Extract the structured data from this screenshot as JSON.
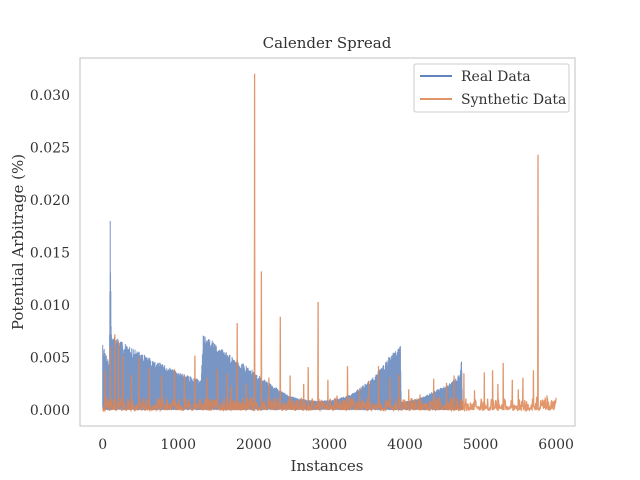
{
  "chart_data": {
    "type": "line",
    "title": "Calender Spread",
    "xlabel": "Instances",
    "ylabel": "Potential Arbitrage (%)",
    "xlim": [
      -300,
      6250
    ],
    "ylim": [
      -0.0015,
      0.0335
    ],
    "x_ticks": [
      0,
      1000,
      2000,
      3000,
      4000,
      5000,
      6000
    ],
    "x_tick_labels": [
      "0",
      "1000",
      "2000",
      "3000",
      "4000",
      "5000",
      "6000"
    ],
    "y_ticks": [
      0.0,
      0.005,
      0.01,
      0.015,
      0.02,
      0.025,
      0.03
    ],
    "y_tick_labels": [
      "0.000",
      "0.005",
      "0.010",
      "0.015",
      "0.020",
      "0.025",
      "0.030"
    ],
    "grid": false,
    "legend": {
      "position": "top-right"
    },
    "series": [
      {
        "name": "Real Data",
        "color": "#4c72b0",
        "envelope": [
          [
            0,
            0.0062
          ],
          [
            40,
            0.0055
          ],
          [
            90,
            0.0047
          ],
          [
            100,
            0.018
          ],
          [
            115,
            0.0072
          ],
          [
            200,
            0.0068
          ],
          [
            300,
            0.0063
          ],
          [
            400,
            0.0059
          ],
          [
            500,
            0.0055
          ],
          [
            600,
            0.0051
          ],
          [
            700,
            0.0047
          ],
          [
            800,
            0.0044
          ],
          [
            900,
            0.004
          ],
          [
            1000,
            0.0037
          ],
          [
            1100,
            0.0034
          ],
          [
            1200,
            0.0031
          ],
          [
            1300,
            0.0029
          ],
          [
            1330,
            0.0071
          ],
          [
            1450,
            0.0066
          ],
          [
            1550,
            0.006
          ],
          [
            1650,
            0.0055
          ],
          [
            1750,
            0.005
          ],
          [
            1850,
            0.0045
          ],
          [
            1950,
            0.004
          ],
          [
            2050,
            0.0034
          ],
          [
            2150,
            0.0029
          ],
          [
            2250,
            0.0024
          ],
          [
            2350,
            0.0019
          ],
          [
            2450,
            0.0015
          ],
          [
            2550,
            0.0012
          ],
          [
            2700,
            0.001
          ],
          [
            2850,
            0.0009
          ],
          [
            3000,
            0.001
          ],
          [
            3150,
            0.0012
          ],
          [
            3300,
            0.0016
          ],
          [
            3450,
            0.0024
          ],
          [
            3600,
            0.0033
          ],
          [
            3700,
            0.0043
          ],
          [
            3800,
            0.0052
          ],
          [
            3900,
            0.0058
          ],
          [
            3940,
            0.0061
          ],
          [
            3950,
            0.0008
          ],
          [
            4100,
            0.001
          ],
          [
            4250,
            0.0013
          ],
          [
            4350,
            0.0017
          ],
          [
            4450,
            0.0021
          ],
          [
            4550,
            0.0024
          ],
          [
            4650,
            0.003
          ],
          [
            4730,
            0.0035
          ],
          [
            4750,
            0.005
          ],
          [
            4760,
            0.0006
          ]
        ]
      },
      {
        "name": "Synthetic Data",
        "color": "#dd8452",
        "baseline": [
          0.0,
          0.0012
        ],
        "spikes": [
          [
            30,
            0.0038
          ],
          [
            100,
            0.006
          ],
          [
            160,
            0.0072
          ],
          [
            210,
            0.0066
          ],
          [
            270,
            0.0052
          ],
          [
            380,
            0.0034
          ],
          [
            480,
            0.005
          ],
          [
            620,
            0.004
          ],
          [
            780,
            0.0033
          ],
          [
            950,
            0.0039
          ],
          [
            1080,
            0.0034
          ],
          [
            1220,
            0.0052
          ],
          [
            1380,
            0.0031
          ],
          [
            1520,
            0.0039
          ],
          [
            1650,
            0.0035
          ],
          [
            1700,
            0.0023
          ],
          [
            1780,
            0.0083
          ],
          [
            1900,
            0.0025
          ],
          [
            2010,
            0.032
          ],
          [
            2100,
            0.0132
          ],
          [
            2200,
            0.0031
          ],
          [
            2350,
            0.0089
          ],
          [
            2480,
            0.0033
          ],
          [
            2660,
            0.0025
          ],
          [
            2720,
            0.0041
          ],
          [
            2850,
            0.0103
          ],
          [
            2980,
            0.0029
          ],
          [
            3100,
            0.0014
          ],
          [
            3240,
            0.0042
          ],
          [
            3400,
            0.0021
          ],
          [
            3520,
            0.0028
          ],
          [
            3650,
            0.0042
          ],
          [
            3800,
            0.0031
          ],
          [
            3920,
            0.0034
          ],
          [
            4050,
            0.002
          ],
          [
            4200,
            0.0015
          ],
          [
            4380,
            0.003
          ],
          [
            4550,
            0.0026
          ],
          [
            4650,
            0.0033
          ],
          [
            4780,
            0.0035
          ],
          [
            4920,
            0.0019
          ],
          [
            5050,
            0.0036
          ],
          [
            5160,
            0.0038
          ],
          [
            5230,
            0.0025
          ],
          [
            5300,
            0.0045
          ],
          [
            5420,
            0.0029
          ],
          [
            5500,
            0.002
          ],
          [
            5560,
            0.0031
          ],
          [
            5700,
            0.0038
          ],
          [
            5760,
            0.0243
          ],
          [
            5880,
            0.0014
          ],
          [
            5980,
            0.0009
          ]
        ]
      }
    ]
  }
}
